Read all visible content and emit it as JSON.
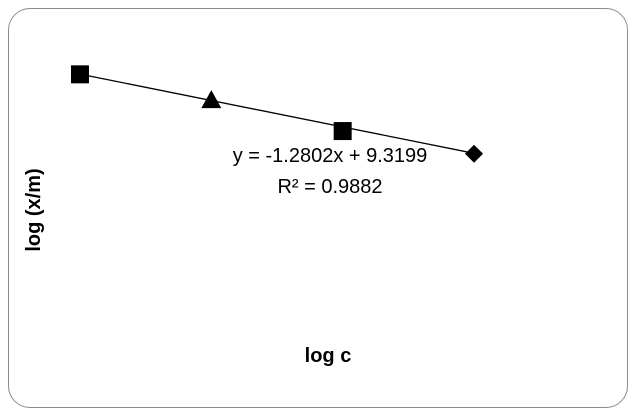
{
  "chart_data": {
    "type": "scatter",
    "title": "",
    "xlabel": "log c",
    "ylabel": "log (x/m)",
    "grid": false,
    "legend": "none",
    "points": [
      {
        "x": 6.13,
        "y": 1.47,
        "marker": "square"
      },
      {
        "x": 6.33,
        "y": 1.22,
        "marker": "triangle"
      },
      {
        "x": 6.53,
        "y": 0.92,
        "marker": "square"
      },
      {
        "x": 6.73,
        "y": 0.7,
        "marker": "diamond"
      }
    ],
    "trendline": {
      "type": "linear",
      "slope": -1.2802,
      "intercept": 9.3199,
      "x_range": [
        6.13,
        6.73
      ],
      "equation_label": "y = -1.2802x + 9.3199",
      "r2_label": "R² = 0.9882"
    },
    "xlim": [
      6.06,
      6.8
    ],
    "ylim": [
      -1.3,
      1.9
    ],
    "colors": {
      "marker": "#000000",
      "line": "#000000",
      "frame": "#8c8c8c"
    }
  }
}
